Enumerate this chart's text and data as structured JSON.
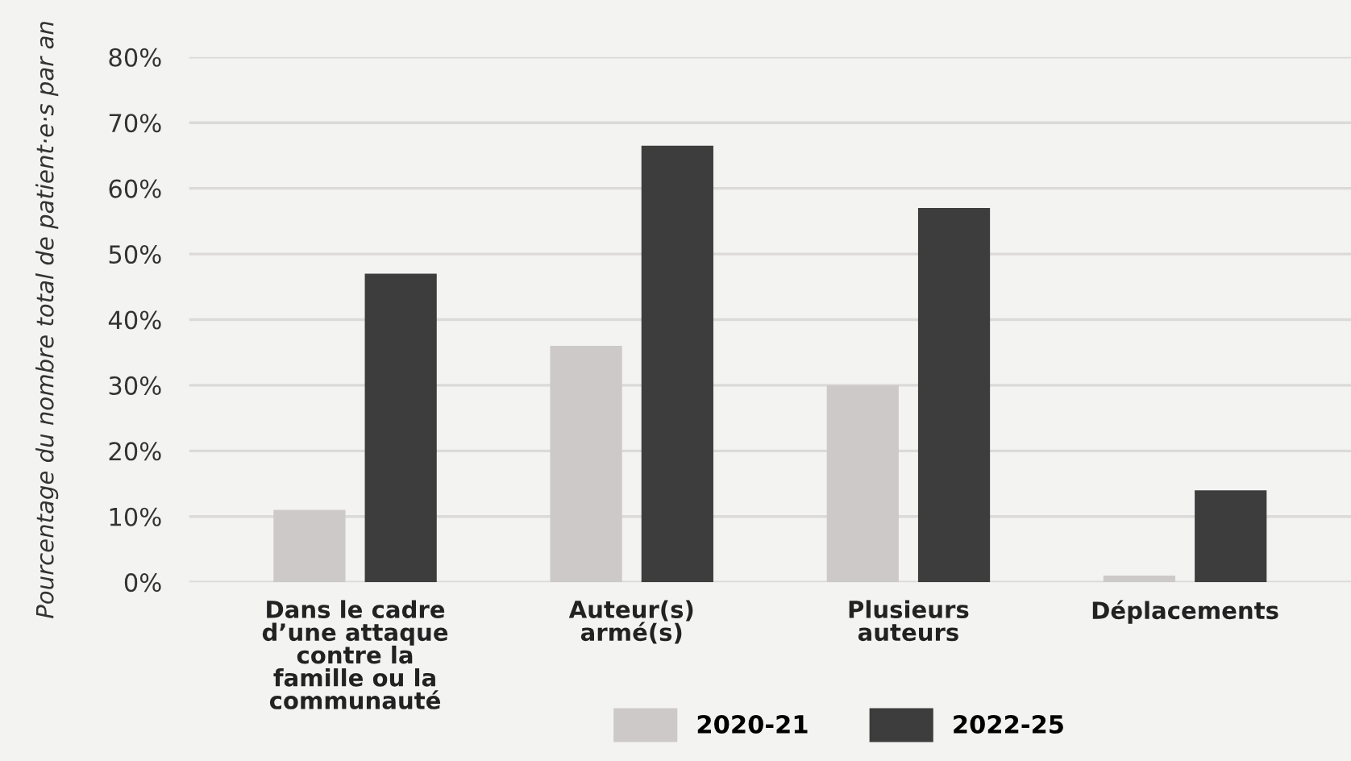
{
  "chart_data": {
    "type": "bar",
    "ylabel": "Pourcentage du nombre total de patient·e·s par an",
    "categories": [
      "Dans le cadre\nd’une attaque\ncontre la\nfamille ou la\ncommunauté",
      "Auteur(s)\narmé(s)",
      "Plusieurs\nauteurs",
      "Déplacements"
    ],
    "series": [
      {
        "name": "2020-21",
        "color": "#cdc9c8",
        "values": [
          11,
          36,
          30,
          1
        ]
      },
      {
        "name": "2022-25",
        "color": "#3d3d3d",
        "values": [
          47,
          66.5,
          57,
          14
        ]
      }
    ],
    "ylim": [
      0,
      80
    ],
    "yticks": [
      {
        "value": 0,
        "label": "0%"
      },
      {
        "value": 10,
        "label": "10%"
      },
      {
        "value": 20,
        "label": "20%"
      },
      {
        "value": 30,
        "label": "30%"
      },
      {
        "value": 40,
        "label": "40%"
      },
      {
        "value": 50,
        "label": "50%"
      },
      {
        "value": 60,
        "label": "60%"
      },
      {
        "value": 70,
        "label": "70%"
      },
      {
        "value": 80,
        "label": "80%"
      }
    ],
    "grid": "y",
    "legend": "bottom"
  }
}
